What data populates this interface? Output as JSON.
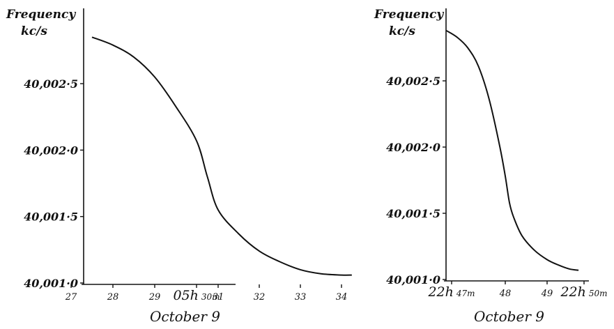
{
  "chart_data": [
    {
      "type": "line",
      "ylabel": "Frequency kc/s",
      "ylabel_lines": [
        "Frequency",
        "kc/s"
      ],
      "xlabel": "October 9",
      "y_ticks": [
        {
          "value": 40001.0,
          "label": "40,001·0"
        },
        {
          "value": 40001.5,
          "label": "40,001·5"
        },
        {
          "value": 40002.0,
          "label": "40,002·0"
        },
        {
          "value": 40002.5,
          "label": "40,002·5"
        }
      ],
      "x_ticks": [
        {
          "value": 27,
          "label": "27"
        },
        {
          "value": 28,
          "label": "28"
        },
        {
          "value": 29,
          "label": "29"
        },
        {
          "value": 30,
          "label": "05h 30m",
          "hour": "05h",
          "minute": "30m"
        },
        {
          "value": 31,
          "label": "31"
        },
        {
          "value": 32,
          "label": "32"
        },
        {
          "value": 33,
          "label": "33"
        },
        {
          "value": 34,
          "label": "34"
        }
      ],
      "xlim": [
        27,
        34.4
      ],
      "ylim": [
        40001.0,
        40002.95
      ],
      "x_unit": "minutes after 05h (UT)",
      "series": [
        {
          "x": [
            27.5,
            28.0,
            28.5,
            29.0,
            29.5,
            30.0,
            30.5,
            31.0,
            31.5,
            32.0,
            32.5,
            33.0,
            33.5,
            34.0,
            34.25
          ],
          "y": [
            40002.85,
            40002.79,
            40002.7,
            40002.55,
            40002.33,
            40002.07,
            40001.8,
            40001.55,
            40001.37,
            40001.24,
            40001.16,
            40001.1,
            40001.07,
            40001.06,
            40001.06
          ]
        }
      ]
    },
    {
      "type": "line",
      "ylabel": "Frequency kc/s",
      "ylabel_lines": [
        "Frequency",
        "kc/s"
      ],
      "xlabel": "October 9",
      "y_ticks": [
        {
          "value": 40001.0,
          "label": "40,001·0"
        },
        {
          "value": 40001.5,
          "label": "40,001·5"
        },
        {
          "value": 40002.0,
          "label": "40,002·0"
        },
        {
          "value": 40002.5,
          "label": "40,002·5"
        }
      ],
      "x_ticks": [
        {
          "value": 47,
          "label": "22h 47m",
          "hour": "22h",
          "minute": "47m"
        },
        {
          "value": 48,
          "label": "48"
        },
        {
          "value": 49,
          "label": "49"
        },
        {
          "value": 50,
          "label": "22h 50m",
          "hour": "22h",
          "minute": "50m"
        }
      ],
      "xlim": [
        46.8,
        50.1
      ],
      "ylim": [
        40001.0,
        40002.95
      ],
      "x_unit": "minutes after 22h (UT)",
      "series": [
        {
          "x": [
            46.9,
            47.1,
            47.3,
            47.5,
            47.7,
            47.9,
            48.0,
            48.1,
            48.2,
            48.4,
            48.7,
            49.0,
            49.3,
            49.6,
            49.85
          ],
          "y": [
            40002.88,
            40002.83,
            40002.75,
            40002.61,
            40002.36,
            40002.0,
            40001.78,
            40001.58,
            40001.47,
            40001.33,
            40001.22,
            40001.15,
            40001.11,
            40001.08,
            40001.07
          ]
        }
      ]
    }
  ]
}
